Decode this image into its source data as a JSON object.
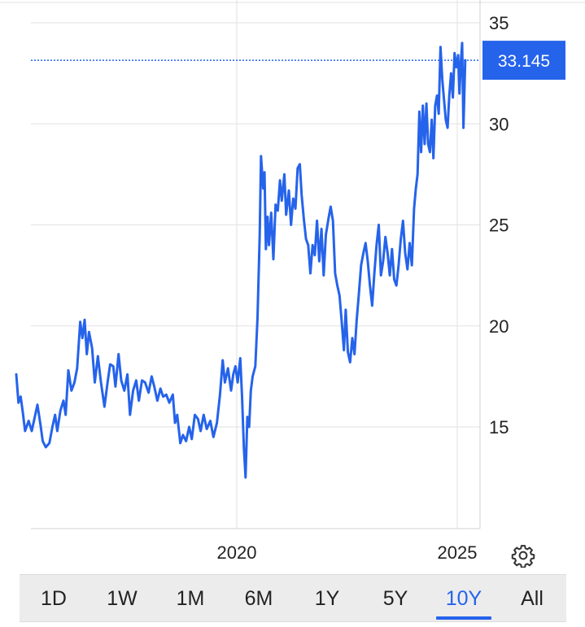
{
  "chart_data": {
    "type": "line",
    "title": "",
    "xlabel": "",
    "ylabel": "",
    "ylim": [
      10,
      35
    ],
    "y_ticks": [
      15,
      20,
      25,
      30,
      35
    ],
    "x_ticks": [
      {
        "label": "2020",
        "x": 2020.0
      },
      {
        "label": "2025",
        "x": 2025.0
      }
    ],
    "xlim": [
      2015.0,
      2026.2
    ],
    "grid": true,
    "color": "#2563eb",
    "current_price": 33.145,
    "current_price_label": "33.145",
    "series": [
      {
        "values": [
          [
            2015.0,
            17.6
          ],
          [
            2015.05,
            16.2
          ],
          [
            2015.1,
            16.5
          ],
          [
            2015.15,
            15.7
          ],
          [
            2015.2,
            14.8
          ],
          [
            2015.28,
            15.3
          ],
          [
            2015.35,
            14.8
          ],
          [
            2015.42,
            15.5
          ],
          [
            2015.48,
            16.1
          ],
          [
            2015.55,
            15.1
          ],
          [
            2015.6,
            14.3
          ],
          [
            2015.67,
            14.0
          ],
          [
            2015.75,
            14.2
          ],
          [
            2015.82,
            15.0
          ],
          [
            2015.88,
            15.6
          ],
          [
            2015.93,
            14.8
          ],
          [
            2016.0,
            15.8
          ],
          [
            2016.07,
            16.3
          ],
          [
            2016.12,
            15.6
          ],
          [
            2016.18,
            17.8
          ],
          [
            2016.25,
            16.8
          ],
          [
            2016.32,
            17.2
          ],
          [
            2016.38,
            17.9
          ],
          [
            2016.45,
            20.2
          ],
          [
            2016.5,
            19.4
          ],
          [
            2016.55,
            20.3
          ],
          [
            2016.6,
            18.6
          ],
          [
            2016.65,
            19.7
          ],
          [
            2016.72,
            18.9
          ],
          [
            2016.78,
            17.2
          ],
          [
            2016.85,
            18.5
          ],
          [
            2016.92,
            17.2
          ],
          [
            2017.0,
            16.0
          ],
          [
            2017.07,
            17.2
          ],
          [
            2017.13,
            18.1
          ],
          [
            2017.2,
            18.0
          ],
          [
            2017.25,
            17.0
          ],
          [
            2017.32,
            18.6
          ],
          [
            2017.38,
            17.3
          ],
          [
            2017.45,
            16.8
          ],
          [
            2017.52,
            17.6
          ],
          [
            2017.58,
            15.6
          ],
          [
            2017.65,
            16.8
          ],
          [
            2017.72,
            17.3
          ],
          [
            2017.78,
            16.3
          ],
          [
            2017.85,
            17.3
          ],
          [
            2017.92,
            17.2
          ],
          [
            2018.0,
            16.7
          ],
          [
            2018.07,
            17.5
          ],
          [
            2018.13,
            17.0
          ],
          [
            2018.2,
            16.3
          ],
          [
            2018.27,
            16.9
          ],
          [
            2018.33,
            16.5
          ],
          [
            2018.4,
            16.6
          ],
          [
            2018.47,
            16.2
          ],
          [
            2018.55,
            16.6
          ],
          [
            2018.6,
            15.2
          ],
          [
            2018.65,
            15.6
          ],
          [
            2018.72,
            14.2
          ],
          [
            2018.78,
            14.6
          ],
          [
            2018.85,
            14.3
          ],
          [
            2018.92,
            15.0
          ],
          [
            2018.98,
            14.4
          ],
          [
            2019.05,
            15.6
          ],
          [
            2019.12,
            15.4
          ],
          [
            2019.18,
            14.8
          ],
          [
            2019.25,
            15.6
          ],
          [
            2019.32,
            14.9
          ],
          [
            2019.4,
            15.3
          ],
          [
            2019.47,
            14.5
          ],
          [
            2019.55,
            15.2
          ],
          [
            2019.62,
            16.6
          ],
          [
            2019.68,
            18.3
          ],
          [
            2019.73,
            17.2
          ],
          [
            2019.8,
            17.9
          ],
          [
            2019.87,
            16.8
          ],
          [
            2019.92,
            17.6
          ],
          [
            2019.97,
            18.0
          ],
          [
            2020.02,
            17.2
          ],
          [
            2020.08,
            18.4
          ],
          [
            2020.12,
            16.5
          ],
          [
            2020.16,
            14.0
          ],
          [
            2020.2,
            12.5
          ],
          [
            2020.24,
            15.5
          ],
          [
            2020.28,
            15.0
          ],
          [
            2020.32,
            16.8
          ],
          [
            2020.36,
            17.5
          ],
          [
            2020.42,
            18.0
          ],
          [
            2020.47,
            20.4
          ],
          [
            2020.52,
            24.5
          ],
          [
            2020.55,
            28.4
          ],
          [
            2020.6,
            26.8
          ],
          [
            2020.63,
            27.6
          ],
          [
            2020.66,
            23.8
          ],
          [
            2020.7,
            25.4
          ],
          [
            2020.73,
            24.0
          ],
          [
            2020.78,
            25.6
          ],
          [
            2020.83,
            23.3
          ],
          [
            2020.88,
            26.0
          ],
          [
            2020.93,
            25.7
          ],
          [
            2020.98,
            27.2
          ],
          [
            2021.02,
            26.2
          ],
          [
            2021.08,
            27.5
          ],
          [
            2021.12,
            25.5
          ],
          [
            2021.18,
            26.7
          ],
          [
            2021.23,
            25.0
          ],
          [
            2021.28,
            26.3
          ],
          [
            2021.33,
            25.8
          ],
          [
            2021.38,
            27.8
          ],
          [
            2021.43,
            28.0
          ],
          [
            2021.47,
            26.5
          ],
          [
            2021.52,
            25.3
          ],
          [
            2021.57,
            24.3
          ],
          [
            2021.62,
            24.0
          ],
          [
            2021.67,
            22.6
          ],
          [
            2021.72,
            24.0
          ],
          [
            2021.77,
            23.5
          ],
          [
            2021.82,
            25.2
          ],
          [
            2021.87,
            23.2
          ],
          [
            2021.92,
            24.8
          ],
          [
            2021.97,
            22.5
          ],
          [
            2022.02,
            24.5
          ],
          [
            2022.08,
            25.3
          ],
          [
            2022.13,
            25.9
          ],
          [
            2022.18,
            25.2
          ],
          [
            2022.23,
            22.6
          ],
          [
            2022.28,
            22.0
          ],
          [
            2022.33,
            21.5
          ],
          [
            2022.38,
            20.2
          ],
          [
            2022.43,
            18.8
          ],
          [
            2022.47,
            20.8
          ],
          [
            2022.52,
            18.7
          ],
          [
            2022.57,
            18.2
          ],
          [
            2022.62,
            19.4
          ],
          [
            2022.67,
            18.6
          ],
          [
            2022.72,
            20.3
          ],
          [
            2022.77,
            21.6
          ],
          [
            2022.82,
            23.0
          ],
          [
            2022.87,
            23.6
          ],
          [
            2022.92,
            24.1
          ],
          [
            2022.97,
            23.2
          ],
          [
            2023.02,
            22.0
          ],
          [
            2023.07,
            21.0
          ],
          [
            2023.12,
            22.6
          ],
          [
            2023.17,
            24.0
          ],
          [
            2023.22,
            25.0
          ],
          [
            2023.27,
            22.5
          ],
          [
            2023.32,
            23.2
          ],
          [
            2023.37,
            24.4
          ],
          [
            2023.42,
            23.6
          ],
          [
            2023.47,
            22.5
          ],
          [
            2023.52,
            23.8
          ],
          [
            2023.57,
            22.3
          ],
          [
            2023.62,
            22.0
          ],
          [
            2023.67,
            23.0
          ],
          [
            2023.72,
            24.3
          ],
          [
            2023.77,
            25.2
          ],
          [
            2023.82,
            23.6
          ],
          [
            2023.87,
            22.8
          ],
          [
            2023.92,
            24.1
          ],
          [
            2023.97,
            23.0
          ],
          [
            2024.02,
            25.8
          ],
          [
            2024.06,
            26.8
          ],
          [
            2024.1,
            27.5
          ],
          [
            2024.14,
            30.6
          ],
          [
            2024.18,
            28.6
          ],
          [
            2024.22,
            30.9
          ],
          [
            2024.26,
            29.0
          ],
          [
            2024.3,
            31.0
          ],
          [
            2024.34,
            29.0
          ],
          [
            2024.38,
            28.6
          ],
          [
            2024.42,
            30.2
          ],
          [
            2024.46,
            28.3
          ],
          [
            2024.5,
            30.9
          ],
          [
            2024.54,
            31.4
          ],
          [
            2024.58,
            30.5
          ],
          [
            2024.62,
            33.8
          ],
          [
            2024.66,
            32.2
          ],
          [
            2024.7,
            31.2
          ],
          [
            2024.74,
            30.2
          ],
          [
            2024.78,
            29.8
          ],
          [
            2024.82,
            31.4
          ],
          [
            2024.86,
            32.5
          ],
          [
            2024.9,
            31.3
          ],
          [
            2024.94,
            33.5
          ],
          [
            2024.98,
            32.8
          ],
          [
            2025.02,
            33.4
          ],
          [
            2025.05,
            31.5
          ],
          [
            2025.08,
            33.0
          ],
          [
            2025.11,
            34.0
          ],
          [
            2025.14,
            29.8
          ],
          [
            2025.18,
            33.145
          ]
        ]
      }
    ]
  },
  "settings": {
    "icon": "gear-icon"
  },
  "range_selector": {
    "items": [
      {
        "label": "1D",
        "active": false
      },
      {
        "label": "1W",
        "active": false
      },
      {
        "label": "1M",
        "active": false
      },
      {
        "label": "6M",
        "active": false
      },
      {
        "label": "1Y",
        "active": false
      },
      {
        "label": "5Y",
        "active": false
      },
      {
        "label": "10Y",
        "active": true
      },
      {
        "label": "All",
        "active": false
      }
    ]
  }
}
